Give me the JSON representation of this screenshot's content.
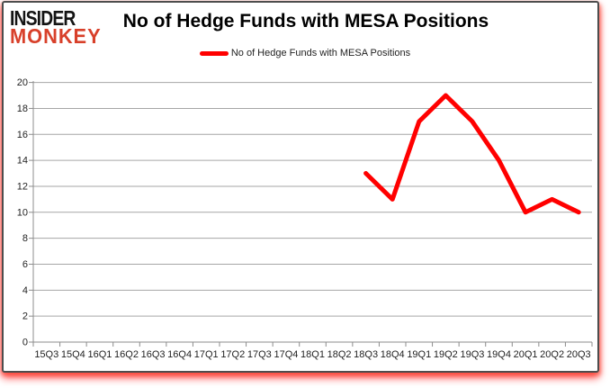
{
  "logo": {
    "line1": "INSIDER",
    "line2": "MONKEY",
    "color1": "#141414",
    "color2": "#d8402a"
  },
  "header": {
    "title": "No of Hedge Funds with MESA Positions"
  },
  "legend": {
    "label": "No of Hedge Funds with MESA Positions",
    "swatch_color": "#ff0000"
  },
  "chart_data": {
    "type": "line",
    "title": "No of Hedge Funds with MESA Positions",
    "categories": [
      "15Q3",
      "15Q4",
      "16Q1",
      "16Q2",
      "16Q3",
      "16Q4",
      "17Q1",
      "17Q2",
      "17Q3",
      "17Q4",
      "18Q1",
      "18Q2",
      "18Q3",
      "18Q4",
      "19Q1",
      "19Q2",
      "19Q3",
      "19Q4",
      "20Q1",
      "20Q2",
      "20Q3"
    ],
    "series": [
      {
        "name": "No of Hedge Funds with MESA Positions",
        "color": "#ff0000",
        "values": [
          null,
          null,
          null,
          null,
          null,
          null,
          null,
          null,
          null,
          null,
          null,
          null,
          13,
          11,
          17,
          19,
          17,
          14,
          10,
          11,
          10
        ]
      }
    ],
    "ylim": [
      0,
      20
    ],
    "ytick_step": 2,
    "grid": true,
    "legend_position": "top",
    "xlabel": "",
    "ylabel": ""
  },
  "colors": {
    "gridline": "#a6a6a6",
    "axis": "#8c8c8c",
    "tick_label": "#1f1f1f"
  }
}
